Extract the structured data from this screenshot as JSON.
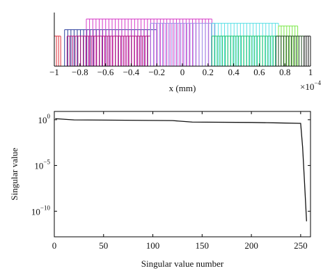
{
  "chart_data": [
    {
      "type": "stem",
      "xlabel": "x (mm)",
      "offset_label": "×10",
      "offset_exponent": "−4",
      "xlim": [
        -1,
        1
      ],
      "ylim": [
        0,
        1
      ],
      "xticks": [
        {
          "value": -1,
          "label": "−1"
        },
        {
          "value": -0.8,
          "label": "−0.8"
        },
        {
          "value": -0.6,
          "label": "−0.6"
        },
        {
          "value": -0.4,
          "label": "−0.4"
        },
        {
          "value": -0.2,
          "label": "−0.2"
        },
        0,
        0.2,
        0.4,
        0.6,
        0.8,
        1
      ],
      "series": [
        {
          "color": "#e0303a",
          "range": [
            -1,
            -0.95
          ],
          "value": 0.56,
          "count": 4
        },
        {
          "color": "#2b3f9e",
          "range": [
            -0.92,
            -0.2
          ],
          "value": 0.68,
          "count": 30
        },
        {
          "color": "#d63cc8",
          "range": [
            -0.75,
            0.23
          ],
          "value": 0.88,
          "count": 40
        },
        {
          "color": "#b0127a",
          "range": [
            -0.9,
            -0.25
          ],
          "value": 0.56,
          "count": 32
        },
        {
          "color": "#9f8fe8",
          "range": [
            -0.25,
            0.25
          ],
          "value": 0.8,
          "count": 22
        },
        {
          "color": "#5ce0e6",
          "range": [
            0.23,
            0.75
          ],
          "value": 0.8,
          "count": 22
        },
        {
          "color": "#16c26a",
          "range": [
            0.23,
            0.75
          ],
          "value": 0.56,
          "count": 26
        },
        {
          "color": "#7de84a",
          "range": [
            0.75,
            0.9
          ],
          "value": 0.75,
          "count": 8
        },
        {
          "color": "#1e4a1e",
          "range": [
            0.73,
            0.95
          ],
          "value": 0.56,
          "count": 12
        },
        {
          "color": "#111111",
          "range": [
            0.95,
            1
          ],
          "value": 0.56,
          "count": 4
        }
      ]
    },
    {
      "type": "line",
      "xlabel": "Singular value number",
      "ylabel": "Singular value",
      "log_y": true,
      "color": "#111111",
      "xlim": [
        0,
        260
      ],
      "ylim": [
        8,
        1.6e-13
      ],
      "xticks": [
        0,
        50,
        100,
        150,
        200,
        250
      ],
      "yticks": [
        {
          "value": 1,
          "label": "10",
          "sup": "0"
        },
        {
          "value": 1e-05,
          "label": "10",
          "sup": "−5"
        },
        {
          "value": 1e-10,
          "label": "10",
          "sup": "−10"
        }
      ],
      "x": [
        1,
        20,
        60,
        120,
        140,
        200,
        226,
        250,
        252,
        254,
        256
      ],
      "values": [
        1.3,
        0.95,
        0.9,
        0.8,
        0.55,
        0.5,
        0.45,
        0.4,
        0.001,
        1e-07,
        8e-12
      ]
    }
  ]
}
